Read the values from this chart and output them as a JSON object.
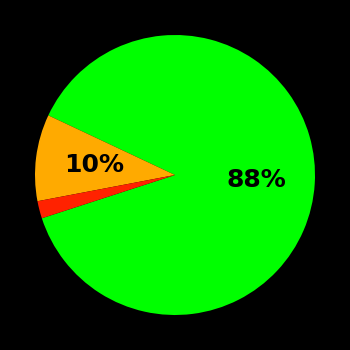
{
  "slices": [
    88,
    10,
    2
  ],
  "colors": [
    "#00ff00",
    "#ffaa00",
    "#ff2200"
  ],
  "labels": [
    "88%",
    "10%",
    ""
  ],
  "label_positions": [
    [
      0.35,
      0.05
    ],
    [
      -0.52,
      -0.28
    ],
    [
      "",
      ""
    ]
  ],
  "background_color": "#000000",
  "text_color": "#000000",
  "startangle": 198,
  "counterclock": true,
  "figsize": [
    3.5,
    3.5
  ],
  "dpi": 100,
  "fontsize": 18
}
